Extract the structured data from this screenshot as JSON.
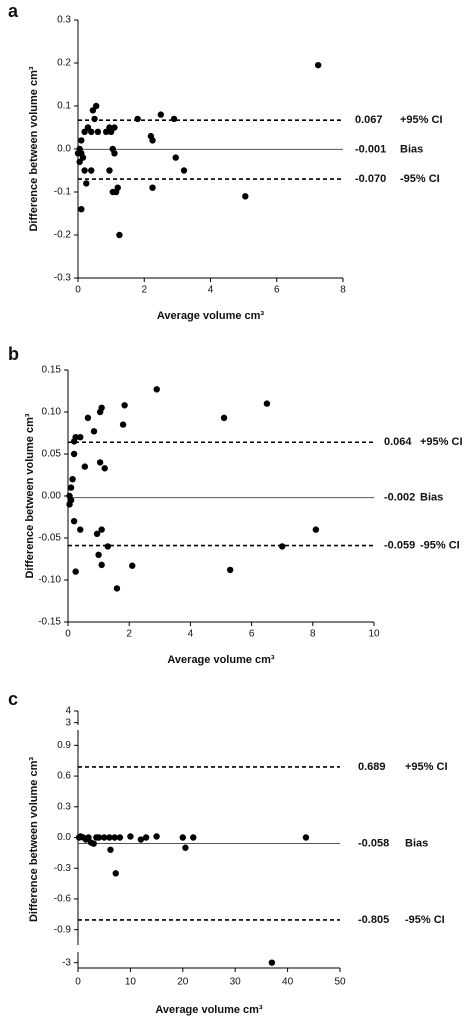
{
  "chart_data": [
    {
      "type": "scatter",
      "panel": "a",
      "x_label": "Average volume cm³",
      "y_label": "Difference between volume cm³",
      "xlim": [
        0,
        8
      ],
      "xticks": [
        0,
        2,
        4,
        6,
        8
      ],
      "ylim": [
        -0.3,
        0.3
      ],
      "yticks": [
        -0.3,
        -0.2,
        -0.1,
        {
          "value": 0,
          "label": "0.0"
        },
        0.1,
        0.2,
        0.3
      ],
      "color": "#000000",
      "x": [
        7.25,
        0.55,
        0.45,
        0.5,
        0.3,
        0.2,
        0.4,
        0.6,
        0.1,
        0.05,
        0.1,
        0.15,
        0.0,
        0.05,
        0.1,
        0.2,
        0.4,
        0.25,
        0.85,
        0.95,
        1.0,
        1.1,
        1.05,
        1.1,
        0.95,
        1.05,
        1.15,
        1.2,
        1.25,
        1.8,
        2.2,
        2.25,
        2.25,
        2.5,
        2.9,
        2.95,
        3.2,
        5.05
      ],
      "values": [
        0.195,
        0.1,
        0.09,
        0.07,
        0.05,
        0.04,
        0.04,
        0.04,
        0.02,
        0.0,
        -0.01,
        -0.02,
        -0.01,
        -0.03,
        -0.14,
        -0.05,
        -0.05,
        -0.08,
        0.04,
        0.05,
        0.04,
        0.05,
        0.0,
        -0.01,
        -0.05,
        -0.1,
        -0.1,
        -0.09,
        -0.2,
        0.07,
        0.03,
        0.02,
        -0.09,
        0.08,
        0.07,
        -0.02,
        -0.05,
        -0.11
      ],
      "reference_lines": {
        "values": [
          0.067,
          -0.001,
          -0.07
        ],
        "value_labels": [
          "0.067",
          "-0.001",
          "-0.070"
        ],
        "names": [
          "+95% CI",
          "Bias",
          "-95% CI"
        ],
        "styles": [
          "dashed",
          "solid",
          "dashed"
        ]
      }
    },
    {
      "type": "scatter",
      "panel": "b",
      "x_label": "Average volume cm³",
      "y_label": "Difference between volume cm³",
      "xlim": [
        0,
        10
      ],
      "xticks": [
        0,
        2,
        4,
        6,
        8,
        10
      ],
      "ylim": [
        -0.15,
        0.15
      ],
      "yticks": [
        -0.15,
        {
          "value": -0.1,
          "label": "-0.10"
        },
        -0.05,
        {
          "value": 0,
          "label": "0.00"
        },
        0.05,
        {
          "value": 0.1,
          "label": "0.10"
        },
        0.15
      ],
      "color": "#000000",
      "x": [
        2.9,
        6.5,
        1.85,
        1.1,
        1.05,
        5.1,
        0.65,
        0.85,
        1.8,
        0.25,
        0.4,
        0.2,
        0.2,
        0.55,
        1.2,
        1.05,
        0.15,
        0.1,
        0.05,
        0.1,
        0.05,
        0.2,
        0.4,
        0.95,
        1.1,
        1.3,
        1.0,
        1.1,
        0.25,
        2.1,
        1.6,
        5.3,
        7.0,
        8.1
      ],
      "values": [
        0.127,
        0.11,
        0.108,
        0.105,
        0.1,
        0.093,
        0.093,
        0.077,
        0.085,
        0.07,
        0.07,
        0.065,
        0.05,
        0.035,
        0.033,
        0.04,
        0.02,
        0.01,
        0.0,
        -0.005,
        -0.01,
        -0.03,
        -0.04,
        -0.045,
        -0.04,
        -0.06,
        -0.07,
        -0.082,
        -0.09,
        -0.083,
        -0.11,
        -0.088,
        -0.06,
        -0.04
      ],
      "reference_lines": {
        "values": [
          0.064,
          -0.002,
          -0.059
        ],
        "names": [
          "+95% CI",
          "Bias",
          "-95% CI"
        ],
        "styles": [
          "dashed",
          "solid",
          "dashed"
        ]
      }
    },
    {
      "type": "scatter",
      "panel": "c",
      "x_label": "Average volume cm³",
      "y_label": "Difference between volume cm³",
      "xlim": [
        0,
        50
      ],
      "xticks": [
        0,
        10,
        20,
        30,
        40,
        50
      ],
      "y_segments": [
        {
          "ylim": [
            -3.1,
            -2.8
          ],
          "yticks": [
            -3
          ]
        },
        {
          "ylim": [
            -1.05,
            1.05
          ],
          "yticks": [
            -0.9,
            -0.6,
            -0.3,
            {
              "value": 0,
              "label": "0.0"
            },
            0.3,
            0.6,
            0.9
          ]
        },
        {
          "ylim": [
            2.8,
            4
          ],
          "yticks": [
            3,
            4
          ]
        }
      ],
      "color": "#000000",
      "x": [
        0.2,
        0.5,
        1,
        1.5,
        2,
        2.5,
        3,
        3.5,
        4,
        5,
        6,
        6.2,
        7,
        7.2,
        8,
        10,
        12,
        13,
        15,
        20,
        20.5,
        22,
        43.5,
        37
      ],
      "values": [
        0,
        0.01,
        0,
        -0.02,
        0,
        -0.05,
        -0.06,
        0,
        0,
        0,
        0,
        -0.12,
        0,
        -0.35,
        0,
        0.01,
        -0.02,
        0,
        0.01,
        0,
        -0.1,
        0,
        0,
        -3
      ],
      "reference_lines": {
        "values": [
          0.689,
          -0.058,
          -0.805
        ],
        "names": [
          "+95% CI",
          "Bias",
          "-95% CI"
        ],
        "styles": [
          "dashed",
          "solid",
          "dashed"
        ]
      }
    }
  ]
}
